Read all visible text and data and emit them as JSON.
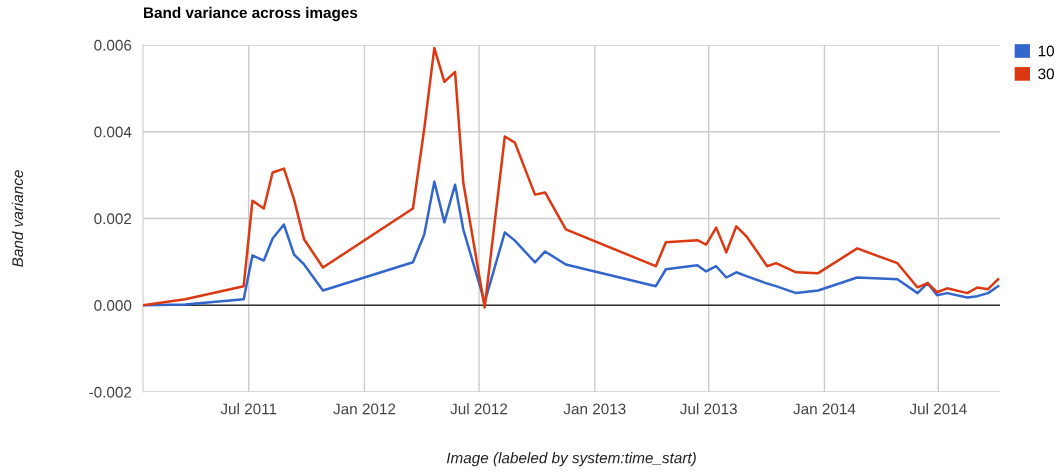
{
  "chart_data": {
    "type": "line",
    "title": "Band variance across images",
    "xlabel": "Image (labeled by system:time_start)",
    "ylabel": "Band variance",
    "x": [
      "2011-01-14",
      "2011-03-22",
      "2011-06-23",
      "2011-07-07",
      "2011-07-25",
      "2011-08-08",
      "2011-08-26",
      "2011-09-11",
      "2011-09-27",
      "2011-10-27",
      "2012-03-18",
      "2012-04-05",
      "2012-04-21",
      "2012-05-07",
      "2012-05-24",
      "2012-06-06",
      "2012-07-10",
      "2012-08-11",
      "2012-08-27",
      "2012-09-28",
      "2012-10-14",
      "2012-11-16",
      "2013-04-08",
      "2013-04-24",
      "2013-06-13",
      "2013-06-27",
      "2013-07-13",
      "2013-07-29",
      "2013-08-14",
      "2013-08-30",
      "2013-10-02",
      "2013-10-16",
      "2013-11-17",
      "2013-12-22",
      "2014-02-22",
      "2014-04-27",
      "2014-05-29",
      "2014-06-14",
      "2014-06-29",
      "2014-07-15",
      "2014-08-16",
      "2014-09-01",
      "2014-09-18",
      "2014-10-04"
    ],
    "series": [
      {
        "name": "10",
        "color": "#3366cc",
        "values": [
          0.0,
          2e-05,
          0.00014,
          0.00115,
          0.00103,
          0.00154,
          0.00186,
          0.00117,
          0.00094,
          0.00034,
          0.00099,
          0.00163,
          0.00285,
          0.00191,
          0.00278,
          0.00175,
          7e-05,
          0.00168,
          0.00149,
          0.00099,
          0.00124,
          0.00094,
          0.00044,
          0.00083,
          0.00092,
          0.00078,
          0.0009,
          0.00064,
          0.00076,
          0.00067,
          0.0005,
          0.00044,
          0.00028,
          0.00034,
          0.00064,
          0.0006,
          0.00028,
          0.00051,
          0.00023,
          0.00028,
          0.00018,
          0.00021,
          0.00028,
          0.00044
        ]
      },
      {
        "name": "30",
        "color": "#dc3912",
        "values": [
          0.0,
          0.00014,
          0.00044,
          0.00241,
          0.00223,
          0.00306,
          0.00315,
          0.00244,
          0.00152,
          0.00087,
          0.00223,
          0.00407,
          0.00593,
          0.00515,
          0.00538,
          0.00283,
          -5e-05,
          0.00389,
          0.00375,
          0.00255,
          0.0026,
          0.00175,
          0.0009,
          0.00145,
          0.0015,
          0.0014,
          0.00179,
          0.00122,
          0.00182,
          0.00159,
          0.0009,
          0.00097,
          0.00076,
          0.00074,
          0.00131,
          0.00097,
          0.00041,
          0.00051,
          0.0003,
          0.00039,
          0.00028,
          0.00041,
          0.00037,
          0.0006
        ]
      }
    ],
    "xlim": [
      "2011-01-14",
      "2014-10-07"
    ],
    "xticks": [
      {
        "value": "2011-07-01",
        "label": "Jul 2011"
      },
      {
        "value": "2012-01-01",
        "label": "Jan 2012"
      },
      {
        "value": "2012-07-01",
        "label": "Jul 2012"
      },
      {
        "value": "2013-01-01",
        "label": "Jan 2013"
      },
      {
        "value": "2013-07-01",
        "label": "Jul 2013"
      },
      {
        "value": "2014-01-01",
        "label": "Jan 2014"
      },
      {
        "value": "2014-07-01",
        "label": "Jul 2014"
      }
    ],
    "ylim": [
      -0.002,
      0.006
    ],
    "yticks": [
      {
        "value": -0.002,
        "label": "-0.002"
      },
      {
        "value": 0,
        "label": "0.000"
      },
      {
        "value": 0.002,
        "label": "0.002"
      },
      {
        "value": 0.004,
        "label": "0.004"
      },
      {
        "value": 0.006,
        "label": "0.006"
      }
    ],
    "ref_lines": [
      {
        "axis": "y",
        "value": 0,
        "color": "#333333"
      }
    ],
    "grid": true,
    "legend": "top right",
    "marker": "none",
    "line_style": "solid"
  }
}
